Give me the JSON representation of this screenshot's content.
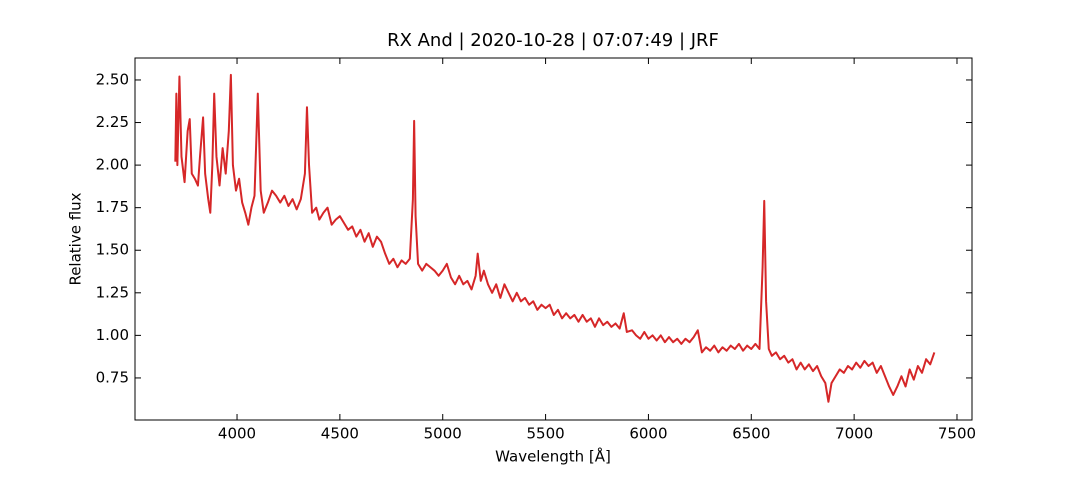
{
  "chart_data": {
    "type": "line",
    "title": "RX And | 2020-10-28 | 07:07:49 | JRF",
    "xlabel": "Wavelength [Å]",
    "ylabel": "Relative flux",
    "color": "#d62728",
    "xlim": [
      3504,
      7573
    ],
    "ylim": [
      0.503,
      2.629
    ],
    "xticks": [
      4000,
      4500,
      5000,
      5500,
      6000,
      6500,
      7000,
      7500
    ],
    "yticks": [
      0.75,
      {
        "value": 1,
        "label": "1.00"
      },
      1.25,
      {
        "value": 1.5,
        "label": "1.50"
      },
      1.75,
      {
        "value": 2,
        "label": "2.00"
      },
      2.25,
      {
        "value": 2.5,
        "label": "2.50"
      }
    ],
    "x": [
      3700,
      3705,
      3710,
      3720,
      3730,
      3745,
      3760,
      3770,
      3780,
      3795,
      3810,
      3820,
      3835,
      3845,
      3860,
      3870,
      3880,
      3889,
      3900,
      3915,
      3930,
      3945,
      3960,
      3970,
      3980,
      3995,
      4010,
      4025,
      4040,
      4055,
      4070,
      4085,
      4101,
      4115,
      4130,
      4150,
      4170,
      4190,
      4210,
      4230,
      4250,
      4270,
      4290,
      4310,
      4330,
      4340,
      4350,
      4365,
      4385,
      4400,
      4420,
      4440,
      4460,
      4480,
      4500,
      4520,
      4540,
      4560,
      4580,
      4600,
      4620,
      4640,
      4660,
      4680,
      4700,
      4720,
      4740,
      4760,
      4780,
      4800,
      4820,
      4840,
      4855,
      4861,
      4868,
      4880,
      4900,
      4920,
      4940,
      4960,
      4980,
      5000,
      5020,
      5040,
      5060,
      5080,
      5100,
      5120,
      5140,
      5160,
      5170,
      5185,
      5200,
      5220,
      5240,
      5260,
      5280,
      5300,
      5320,
      5340,
      5360,
      5380,
      5400,
      5420,
      5440,
      5460,
      5480,
      5500,
      5520,
      5540,
      5560,
      5580,
      5600,
      5620,
      5640,
      5660,
      5680,
      5700,
      5720,
      5740,
      5760,
      5780,
      5800,
      5820,
      5840,
      5860,
      5880,
      5895,
      5920,
      5940,
      5960,
      5980,
      6000,
      6020,
      6040,
      6060,
      6080,
      6100,
      6120,
      6140,
      6160,
      6180,
      6200,
      6220,
      6240,
      6260,
      6280,
      6300,
      6320,
      6340,
      6360,
      6380,
      6400,
      6420,
      6440,
      6460,
      6480,
      6500,
      6520,
      6540,
      6555,
      6563,
      6572,
      6585,
      6600,
      6620,
      6640,
      6660,
      6680,
      6700,
      6720,
      6740,
      6760,
      6780,
      6800,
      6820,
      6840,
      6860,
      6875,
      6890,
      6910,
      6930,
      6950,
      6970,
      6990,
      7010,
      7030,
      7050,
      7070,
      7090,
      7110,
      7130,
      7150,
      7170,
      7190,
      7210,
      7230,
      7250,
      7270,
      7290,
      7310,
      7330,
      7350,
      7370,
      7390
    ],
    "values": [
      2.02,
      2.42,
      2.0,
      2.52,
      2.05,
      1.9,
      2.2,
      2.27,
      1.95,
      1.92,
      1.88,
      2.05,
      2.28,
      1.95,
      1.8,
      1.72,
      2.0,
      2.42,
      2.05,
      1.88,
      2.1,
      1.95,
      2.2,
      2.53,
      2.0,
      1.85,
      1.92,
      1.78,
      1.72,
      1.65,
      1.75,
      1.82,
      2.42,
      1.85,
      1.72,
      1.78,
      1.85,
      1.82,
      1.78,
      1.82,
      1.76,
      1.8,
      1.74,
      1.8,
      1.95,
      2.34,
      2.0,
      1.72,
      1.75,
      1.68,
      1.72,
      1.75,
      1.65,
      1.68,
      1.7,
      1.66,
      1.62,
      1.64,
      1.58,
      1.62,
      1.55,
      1.6,
      1.52,
      1.58,
      1.55,
      1.48,
      1.42,
      1.45,
      1.4,
      1.44,
      1.42,
      1.45,
      1.8,
      2.26,
      1.7,
      1.42,
      1.38,
      1.42,
      1.4,
      1.38,
      1.35,
      1.38,
      1.42,
      1.34,
      1.3,
      1.35,
      1.3,
      1.32,
      1.27,
      1.35,
      1.48,
      1.32,
      1.38,
      1.3,
      1.25,
      1.3,
      1.22,
      1.3,
      1.25,
      1.2,
      1.25,
      1.2,
      1.22,
      1.18,
      1.2,
      1.15,
      1.18,
      1.16,
      1.18,
      1.12,
      1.15,
      1.1,
      1.13,
      1.1,
      1.12,
      1.08,
      1.12,
      1.08,
      1.1,
      1.05,
      1.1,
      1.06,
      1.08,
      1.05,
      1.07,
      1.04,
      1.13,
      1.02,
      1.03,
      1.0,
      0.98,
      1.02,
      0.98,
      1.0,
      0.97,
      1.0,
      0.96,
      0.99,
      0.96,
      0.98,
      0.95,
      0.98,
      0.96,
      0.99,
      1.03,
      0.9,
      0.93,
      0.91,
      0.94,
      0.9,
      0.93,
      0.91,
      0.94,
      0.92,
      0.95,
      0.91,
      0.94,
      0.92,
      0.95,
      0.92,
      1.4,
      1.79,
      1.2,
      0.92,
      0.88,
      0.9,
      0.86,
      0.88,
      0.84,
      0.86,
      0.8,
      0.84,
      0.8,
      0.83,
      0.79,
      0.82,
      0.76,
      0.72,
      0.61,
      0.72,
      0.76,
      0.8,
      0.78,
      0.82,
      0.8,
      0.84,
      0.81,
      0.85,
      0.82,
      0.84,
      0.78,
      0.82,
      0.76,
      0.7,
      0.65,
      0.7,
      0.76,
      0.7,
      0.8,
      0.74,
      0.82,
      0.78,
      0.86,
      0.83,
      0.9
    ]
  }
}
